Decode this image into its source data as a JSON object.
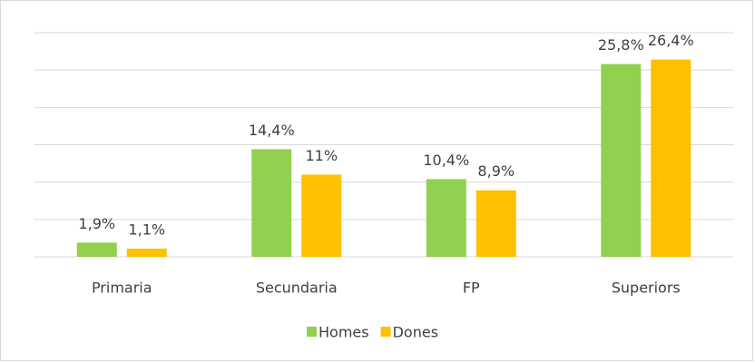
{
  "chart_data": {
    "type": "bar",
    "categories": [
      "Primaria",
      "Secundaria",
      "FP",
      "Superiors"
    ],
    "series": [
      {
        "name": "Homes",
        "color": "#92d050",
        "values": [
          1.9,
          14.4,
          10.4,
          25.8
        ],
        "value_labels": [
          "1,9%",
          "14,4%",
          "10,4%",
          "25,8%"
        ]
      },
      {
        "name": "Dones",
        "color": "#ffc000",
        "values": [
          1.1,
          11,
          8.9,
          26.4
        ],
        "value_labels": [
          "1,1%",
          "11%",
          "8,9%",
          "26,4%"
        ]
      }
    ],
    "ylim": [
      0,
      30
    ],
    "yticks": [
      0,
      5,
      10,
      15,
      20,
      25,
      30
    ],
    "grid": true,
    "legend": "bottom"
  }
}
